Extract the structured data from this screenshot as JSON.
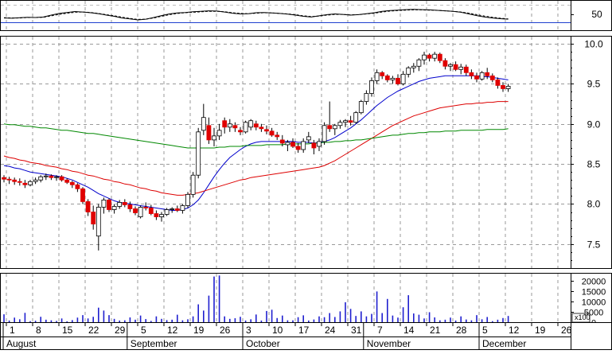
{
  "chart_data": [
    {
      "type": "line",
      "panel": "oscillator",
      "title": "",
      "xlabel": "",
      "ylabel": "",
      "y_tick_labels": [
        "50"
      ],
      "ylim": [
        0,
        100
      ],
      "reference_lines": [
        50
      ],
      "series": [
        {
          "values": [
            48,
            47,
            49,
            51,
            50,
            52,
            60,
            67,
            71,
            75,
            73,
            70,
            66,
            60,
            55,
            48,
            44,
            40,
            43,
            50,
            58,
            65,
            69,
            71,
            74,
            76,
            78,
            77,
            73,
            68,
            65,
            66,
            70,
            71,
            69,
            67,
            64,
            60,
            55,
            52,
            57,
            62,
            65,
            63,
            60,
            62,
            66,
            70,
            76,
            79,
            81,
            83,
            84,
            83,
            82,
            80,
            78,
            76,
            72,
            65,
            58,
            52,
            48,
            45,
            43
          ]
        },
        {
          "values": [
            49,
            48,
            48,
            50,
            50,
            51,
            57,
            63,
            68,
            72,
            73,
            71,
            67,
            62,
            57,
            51,
            46,
            42,
            43,
            48,
            55,
            62,
            67,
            70,
            72,
            74,
            76,
            76,
            74,
            70,
            67,
            66,
            68,
            70,
            69,
            67,
            65,
            62,
            57,
            54,
            56,
            60,
            63,
            63,
            61,
            62,
            65,
            68,
            73,
            77,
            79,
            81,
            82,
            82,
            81,
            80,
            78,
            76,
            73,
            68,
            62,
            56,
            51,
            47,
            44
          ]
        }
      ]
    },
    {
      "type": "candlestick",
      "panel": "price",
      "title": "",
      "xlabel": "",
      "ylabel": "",
      "y_tick_labels": [
        "10.0",
        "9.5",
        "9.0",
        "8.5",
        "8.0",
        "7.5"
      ],
      "ylim": [
        7.2,
        10.1
      ],
      "grid": true,
      "ohlc": [
        [
          8.33,
          8.36,
          8.27,
          8.31
        ],
        [
          8.31,
          8.34,
          8.25,
          8.3
        ],
        [
          8.3,
          8.33,
          8.24,
          8.28
        ],
        [
          8.28,
          8.32,
          8.23,
          8.27
        ],
        [
          8.26,
          8.3,
          8.2,
          8.24
        ],
        [
          8.24,
          8.3,
          8.22,
          8.28
        ],
        [
          8.28,
          8.33,
          8.25,
          8.3
        ],
        [
          8.3,
          8.36,
          8.27,
          8.34
        ],
        [
          8.34,
          8.38,
          8.3,
          8.35
        ],
        [
          8.35,
          8.37,
          8.3,
          8.33
        ],
        [
          8.33,
          8.36,
          8.29,
          8.34
        ],
        [
          8.34,
          8.36,
          8.28,
          8.3
        ],
        [
          8.3,
          8.32,
          8.25,
          8.27
        ],
        [
          8.27,
          8.29,
          8.2,
          8.24
        ],
        [
          8.24,
          8.26,
          8.15,
          8.19
        ],
        [
          8.19,
          8.21,
          8.0,
          8.03
        ],
        [
          8.03,
          8.06,
          7.85,
          7.9
        ],
        [
          7.9,
          7.98,
          7.68,
          7.75
        ],
        [
          7.6,
          8.0,
          7.42,
          7.96
        ],
        [
          7.96,
          8.08,
          7.88,
          8.05
        ],
        [
          8.05,
          8.07,
          7.9,
          7.93
        ],
        [
          7.93,
          8.0,
          7.88,
          7.97
        ],
        [
          7.97,
          8.05,
          7.94,
          8.02
        ],
        [
          8.02,
          8.06,
          7.96,
          7.99
        ],
        [
          7.99,
          8.03,
          7.9,
          7.94
        ],
        [
          7.94,
          7.97,
          7.86,
          7.89
        ],
        [
          7.84,
          7.98,
          7.82,
          7.96
        ],
        [
          7.96,
          8.02,
          7.92,
          7.95
        ],
        [
          7.95,
          7.99,
          7.86,
          7.88
        ],
        [
          7.88,
          7.92,
          7.8,
          7.84
        ],
        [
          7.84,
          7.9,
          7.78,
          7.87
        ],
        [
          7.87,
          7.95,
          7.85,
          7.93
        ],
        [
          7.93,
          7.96,
          7.89,
          7.94
        ],
        [
          7.94,
          7.98,
          7.9,
          7.92
        ],
        [
          7.92,
          8.0,
          7.88,
          7.98
        ],
        [
          7.98,
          8.15,
          7.95,
          8.12
        ],
        [
          8.12,
          8.4,
          8.08,
          8.36
        ],
        [
          8.36,
          8.95,
          8.32,
          8.9
        ],
        [
          8.92,
          9.25,
          8.86,
          9.08
        ],
        [
          8.98,
          9.08,
          8.75,
          8.8
        ],
        [
          8.8,
          8.95,
          8.72,
          8.85
        ],
        [
          8.85,
          9.0,
          8.8,
          8.92
        ],
        [
          9.04,
          9.08,
          8.88,
          8.96
        ],
        [
          8.96,
          9.06,
          8.9,
          9.0
        ],
        [
          8.98,
          9.02,
          8.9,
          8.95
        ],
        [
          8.92,
          8.96,
          8.86,
          8.9
        ],
        [
          8.9,
          9.04,
          8.88,
          9.02
        ],
        [
          8.96,
          9.06,
          8.92,
          9.04
        ],
        [
          9.0,
          9.04,
          8.92,
          8.96
        ],
        [
          8.96,
          9.0,
          8.9,
          8.94
        ],
        [
          8.93,
          8.98,
          8.87,
          8.91
        ],
        [
          8.91,
          8.95,
          8.84,
          8.86
        ],
        [
          8.86,
          8.9,
          8.8,
          8.84
        ],
        [
          8.8,
          8.86,
          8.72,
          8.76
        ],
        [
          8.74,
          8.8,
          8.66,
          8.77
        ],
        [
          8.77,
          8.82,
          8.7,
          8.72
        ],
        [
          8.72,
          8.76,
          8.64,
          8.68
        ],
        [
          8.68,
          8.82,
          8.64,
          8.78
        ],
        [
          8.8,
          8.9,
          8.76,
          8.84
        ],
        [
          8.76,
          8.8,
          8.62,
          8.7
        ],
        [
          8.72,
          8.82,
          8.66,
          8.78
        ],
        [
          8.78,
          9.02,
          8.74,
          8.98
        ],
        [
          8.98,
          9.28,
          8.9,
          8.94
        ],
        [
          8.94,
          9.0,
          8.86,
          8.98
        ],
        [
          8.98,
          9.05,
          8.94,
          9.02
        ],
        [
          9.02,
          9.06,
          8.96,
          9.04
        ],
        [
          9.04,
          9.1,
          8.98,
          9.02
        ],
        [
          9.02,
          9.16,
          9.0,
          9.14
        ],
        [
          9.14,
          9.3,
          9.12,
          9.28
        ],
        [
          9.28,
          9.42,
          9.24,
          9.38
        ],
        [
          9.38,
          9.58,
          9.34,
          9.54
        ],
        [
          9.54,
          9.68,
          9.5,
          9.64
        ],
        [
          9.64,
          9.66,
          9.56,
          9.6
        ],
        [
          9.6,
          9.62,
          9.52,
          9.55
        ],
        [
          9.55,
          9.6,
          9.5,
          9.57
        ],
        [
          9.57,
          9.62,
          9.48,
          9.5
        ],
        [
          9.5,
          9.66,
          9.48,
          9.62
        ],
        [
          9.62,
          9.72,
          9.58,
          9.7
        ],
        [
          9.7,
          9.76,
          9.64,
          9.72
        ],
        [
          9.72,
          9.82,
          9.66,
          9.8
        ],
        [
          9.8,
          9.9,
          9.74,
          9.86
        ],
        [
          9.86,
          9.88,
          9.78,
          9.82
        ],
        [
          9.82,
          9.9,
          9.78,
          9.87
        ],
        [
          9.87,
          9.89,
          9.76,
          9.79
        ],
        [
          9.79,
          9.82,
          9.68,
          9.72
        ],
        [
          9.72,
          9.76,
          9.66,
          9.74
        ],
        [
          9.74,
          9.78,
          9.66,
          9.68
        ],
        [
          9.68,
          9.75,
          9.62,
          9.71
        ],
        [
          9.71,
          9.74,
          9.6,
          9.64
        ],
        [
          9.64,
          9.68,
          9.56,
          9.6
        ],
        [
          9.6,
          9.64,
          9.52,
          9.56
        ],
        [
          9.56,
          9.66,
          9.54,
          9.64
        ],
        [
          9.64,
          9.7,
          9.56,
          9.6
        ],
        [
          9.6,
          9.63,
          9.52,
          9.55
        ],
        [
          9.55,
          9.58,
          9.44,
          9.48
        ],
        [
          9.48,
          9.52,
          9.4,
          9.44
        ],
        [
          9.44,
          9.5,
          9.4,
          9.47
        ]
      ],
      "moving_averages": [
        {
          "color": "#0000cc",
          "values": [
            8.48,
            8.47,
            8.45,
            8.44,
            8.42,
            8.4,
            8.39,
            8.38,
            8.37,
            8.36,
            8.35,
            8.34,
            8.32,
            8.3,
            8.27,
            8.24,
            8.21,
            8.17,
            8.13,
            8.1,
            8.07,
            8.04,
            8.02,
            8.01,
            8.0,
            7.99,
            7.98,
            7.97,
            7.96,
            7.95,
            7.94,
            7.93,
            7.92,
            7.92,
            7.93,
            7.95,
            7.99,
            8.05,
            8.14,
            8.24,
            8.34,
            8.43,
            8.51,
            8.58,
            8.63,
            8.68,
            8.72,
            8.75,
            8.77,
            8.78,
            8.78,
            8.78,
            8.78,
            8.78,
            8.78,
            8.78,
            8.77,
            8.77,
            8.77,
            8.76,
            8.77,
            8.78,
            8.8,
            8.83,
            8.87,
            8.91,
            8.95,
            9.0,
            9.05,
            9.11,
            9.17,
            9.23,
            9.28,
            9.33,
            9.37,
            9.41,
            9.44,
            9.47,
            9.5,
            9.53,
            9.55,
            9.57,
            9.58,
            9.59,
            9.6,
            9.6,
            9.6,
            9.6,
            9.6,
            9.6,
            9.6,
            9.59,
            9.59,
            9.58,
            9.57,
            9.56,
            9.55
          ]
        },
        {
          "color": "#dd0000",
          "values": [
            8.6,
            8.58,
            8.57,
            8.55,
            8.54,
            8.52,
            8.51,
            8.5,
            8.48,
            8.47,
            8.46,
            8.44,
            8.43,
            8.41,
            8.4,
            8.38,
            8.36,
            8.35,
            8.33,
            8.31,
            8.3,
            8.28,
            8.27,
            8.25,
            8.24,
            8.22,
            8.2,
            8.19,
            8.17,
            8.16,
            8.14,
            8.13,
            8.12,
            8.11,
            8.11,
            8.12,
            8.13,
            8.14,
            8.16,
            8.18,
            8.2,
            8.22,
            8.24,
            8.26,
            8.28,
            8.3,
            8.31,
            8.33,
            8.34,
            8.35,
            8.36,
            8.37,
            8.38,
            8.39,
            8.4,
            8.41,
            8.42,
            8.43,
            8.44,
            8.45,
            8.46,
            8.48,
            8.51,
            8.54,
            8.58,
            8.62,
            8.66,
            8.7,
            8.74,
            8.78,
            8.82,
            8.86,
            8.9,
            8.94,
            8.98,
            9.01,
            9.04,
            9.07,
            9.1,
            9.12,
            9.14,
            9.16,
            9.18,
            9.2,
            9.21,
            9.22,
            9.23,
            9.24,
            9.25,
            9.25,
            9.26,
            9.26,
            9.27,
            9.27,
            9.28,
            9.28,
            9.28
          ]
        },
        {
          "color": "#008800",
          "values": [
            9.0,
            8.99,
            8.99,
            8.98,
            8.97,
            8.97,
            8.96,
            8.95,
            8.95,
            8.94,
            8.93,
            8.92,
            8.92,
            8.91,
            8.9,
            8.89,
            8.88,
            8.88,
            8.87,
            8.86,
            8.85,
            8.84,
            8.83,
            8.82,
            8.81,
            8.8,
            8.79,
            8.78,
            8.77,
            8.76,
            8.75,
            8.74,
            8.73,
            8.72,
            8.71,
            8.7,
            8.7,
            8.7,
            8.7,
            8.7,
            8.7,
            8.71,
            8.71,
            8.72,
            8.72,
            8.72,
            8.73,
            8.73,
            8.73,
            8.73,
            8.74,
            8.74,
            8.74,
            8.74,
            8.75,
            8.75,
            8.75,
            8.75,
            8.75,
            8.76,
            8.76,
            8.77,
            8.77,
            8.78,
            8.78,
            8.79,
            8.79,
            8.8,
            8.8,
            8.81,
            8.82,
            8.83,
            8.84,
            8.85,
            8.86,
            8.86,
            8.87,
            8.88,
            8.88,
            8.89,
            8.89,
            8.9,
            8.9,
            8.9,
            8.91,
            8.91,
            8.91,
            8.92,
            8.92,
            8.92,
            8.92,
            8.92,
            8.93,
            8.93,
            8.93,
            8.93,
            8.94
          ]
        }
      ]
    },
    {
      "type": "bar",
      "panel": "volume",
      "title": "",
      "xlabel": "",
      "ylabel": "",
      "y_tick_labels": [
        "20000",
        "15000",
        "10000",
        "5000",
        "0"
      ],
      "y_multiplier_label": "x100",
      "ylim": [
        0,
        23000
      ],
      "values": [
        3800,
        800,
        2200,
        1400,
        4500,
        500,
        700,
        2600,
        1200,
        900,
        600,
        1800,
        400,
        1000,
        2200,
        3400,
        1800,
        2600,
        7000,
        5600,
        3400,
        1600,
        800,
        900,
        2300,
        1200,
        3200,
        1500,
        600,
        2800,
        1600,
        1000,
        1200,
        3600,
        900,
        1400,
        2800,
        8600,
        5600,
        12800,
        22000,
        22500,
        2800,
        1600,
        1900,
        2600,
        800,
        1400,
        3700,
        800,
        5400,
        6000,
        2000,
        3200,
        900,
        900,
        2400,
        3300,
        800,
        1300,
        2800,
        2400,
        4400,
        2500,
        5200,
        9600,
        6400,
        3000,
        5200,
        2800,
        4000,
        14800,
        4400,
        11200,
        3200,
        2200,
        7200,
        13000,
        4200,
        3600,
        1800,
        4800,
        2300,
        900,
        1200,
        2200,
        800,
        2800,
        1300,
        900,
        3400,
        1400,
        2500,
        500,
        1200,
        2000,
        3000
      ]
    },
    {
      "type": "axis",
      "panel": "date-axis",
      "day_labels": [
        "1",
        "8",
        "15",
        "22",
        "29",
        "5",
        "12",
        "19",
        "26",
        "3",
        "10",
        "17",
        "24",
        "31",
        "7",
        "14",
        "21",
        "28",
        "5",
        "12",
        "19",
        "26"
      ],
      "month_labels": [
        "August",
        "September",
        "October",
        "November",
        "December"
      ]
    }
  ]
}
